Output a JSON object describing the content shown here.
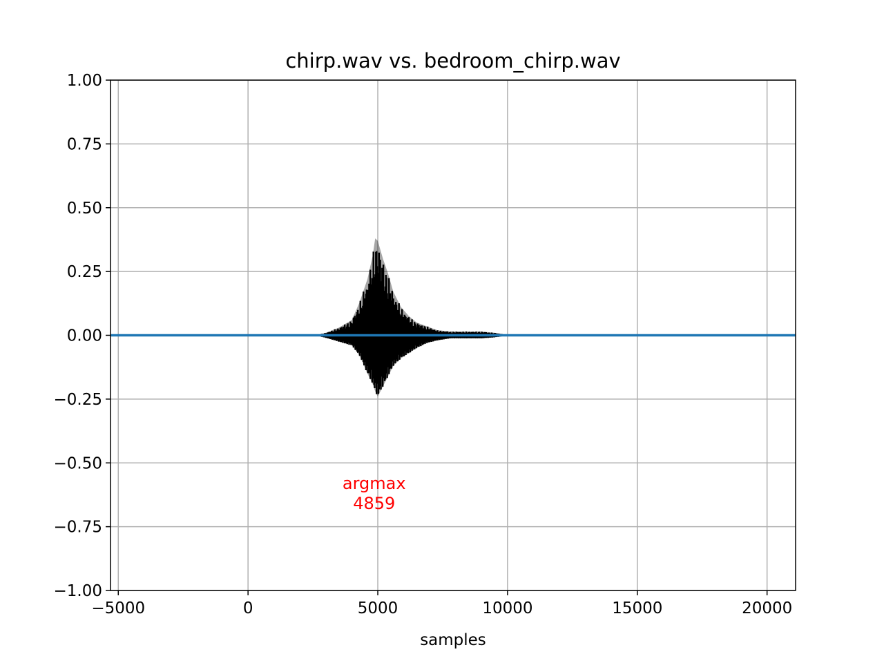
{
  "chart_data": {
    "type": "line",
    "title": "chirp.wav vs. bedroom_chirp.wav",
    "xlabel": "samples",
    "ylabel": "",
    "xlim": [
      -5300,
      21100
    ],
    "ylim": [
      -1.0,
      1.0
    ],
    "grid": true,
    "legend": "none",
    "x_ticks": [
      -5000,
      0,
      5000,
      10000,
      15000,
      20000
    ],
    "x_tick_labels": [
      "−5000",
      "0",
      "5000",
      "10000",
      "15000",
      "20000"
    ],
    "y_ticks": [
      1.0,
      0.75,
      0.5,
      0.25,
      0.0,
      -0.25,
      -0.5,
      -0.75,
      -1.0
    ],
    "y_tick_labels": [
      "1.00",
      "0.75",
      "0.50",
      "0.25",
      "0.00",
      "−0.25",
      "−0.50",
      "−0.75",
      "−1.00"
    ],
    "series": [
      {
        "color": "#000000",
        "envelope": {
          "x": [
            2600,
            3000,
            3500,
            4000,
            4300,
            4600,
            4800,
            4900,
            5000,
            5200,
            5400,
            5600,
            5900,
            6200,
            6500,
            6900,
            7300,
            7800,
            8500,
            9000,
            9500,
            10100
          ],
          "upper": [
            0.0,
            0.01,
            0.03,
            0.06,
            0.13,
            0.22,
            0.31,
            0.38,
            0.37,
            0.3,
            0.24,
            0.17,
            0.11,
            0.075,
            0.05,
            0.035,
            0.02,
            0.015,
            0.015,
            0.015,
            0.01,
            0.0
          ],
          "lower": [
            0.0,
            -0.01,
            -0.025,
            -0.04,
            -0.08,
            -0.15,
            -0.19,
            -0.22,
            -0.24,
            -0.2,
            -0.16,
            -0.12,
            -0.09,
            -0.07,
            -0.05,
            -0.03,
            -0.02,
            -0.012,
            -0.012,
            -0.012,
            -0.008,
            0.0
          ]
        }
      },
      {
        "color": "#1f77b4",
        "x": [
          -5300,
          21100
        ],
        "y": [
          0,
          0
        ]
      }
    ],
    "annotations": [
      {
        "text": "argmax\n4859",
        "color": "#ff0000",
        "x": 4859,
        "y": -0.62
      }
    ]
  }
}
